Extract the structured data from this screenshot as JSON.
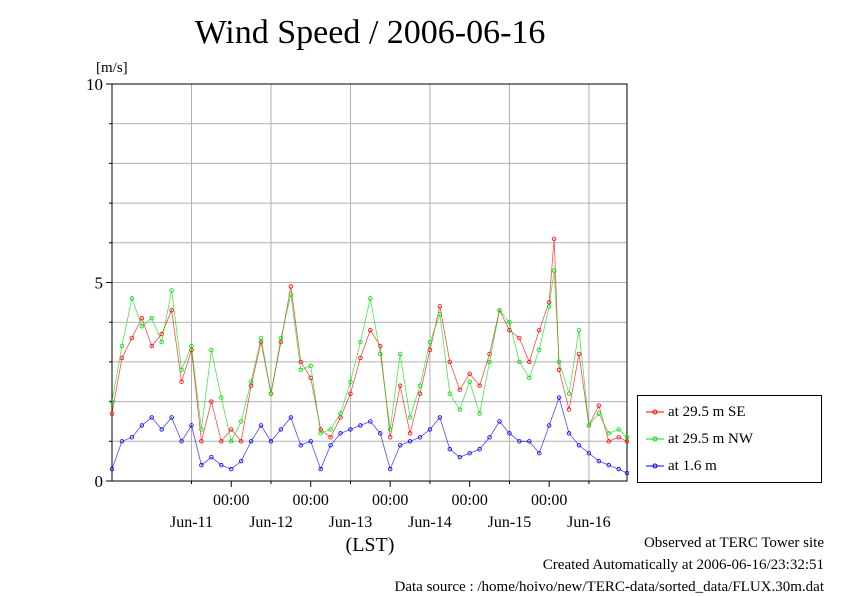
{
  "chart_data": {
    "type": "line",
    "title": "Wind Speed / 2006-06-16",
    "ylabel": "[m/s]",
    "xlabel": "(LST)",
    "ylim": [
      0,
      10
    ],
    "yticks": [
      "0",
      "5",
      "10"
    ],
    "xlim": [
      "2006-06-10 12:00",
      "2006-06-16 23:30"
    ],
    "time_labels": [
      "00:00",
      "00:00",
      "00:00",
      "00:00",
      "00:00"
    ],
    "day_labels": [
      "Jun-11",
      "Jun-12",
      "Jun-13",
      "Jun-14",
      "Jun-15",
      "Jun-16"
    ],
    "grid": true,
    "legend_position": "right",
    "series": [
      {
        "name": "at 29.5 m SE",
        "color": "#ff0000",
        "points": [
          [
            "2006-06-10 12:00",
            1.7
          ],
          [
            "2006-06-10 15:00",
            3.1
          ],
          [
            "2006-06-10 18:00",
            3.6
          ],
          [
            "2006-06-10 21:00",
            4.1
          ],
          [
            "2006-06-11 00:00",
            3.4
          ],
          [
            "2006-06-11 03:00",
            3.7
          ],
          [
            "2006-06-11 06:00",
            4.3
          ],
          [
            "2006-06-11 09:00",
            2.5
          ],
          [
            "2006-06-11 12:00",
            3.3
          ],
          [
            "2006-06-11 15:00",
            1.0
          ],
          [
            "2006-06-11 18:00",
            2.0
          ],
          [
            "2006-06-11 21:00",
            1.0
          ],
          [
            "2006-06-12 00:00",
            1.3
          ],
          [
            "2006-06-12 03:00",
            1.0
          ],
          [
            "2006-06-12 06:00",
            2.4
          ],
          [
            "2006-06-12 09:00",
            3.5
          ],
          [
            "2006-06-12 12:00",
            2.2
          ],
          [
            "2006-06-12 15:00",
            3.5
          ],
          [
            "2006-06-12 18:00",
            4.9
          ],
          [
            "2006-06-12 21:00",
            3.0
          ],
          [
            "2006-06-13 00:00",
            2.6
          ],
          [
            "2006-06-13 03:00",
            1.3
          ],
          [
            "2006-06-13 06:00",
            1.1
          ],
          [
            "2006-06-13 09:00",
            1.6
          ],
          [
            "2006-06-13 12:00",
            2.2
          ],
          [
            "2006-06-13 15:00",
            3.1
          ],
          [
            "2006-06-13 18:00",
            3.8
          ],
          [
            "2006-06-13 21:00",
            3.4
          ],
          [
            "2006-06-14 00:00",
            1.1
          ],
          [
            "2006-06-14 03:00",
            2.4
          ],
          [
            "2006-06-14 06:00",
            1.2
          ],
          [
            "2006-06-14 09:00",
            2.2
          ],
          [
            "2006-06-14 12:00",
            3.3
          ],
          [
            "2006-06-14 15:00",
            4.4
          ],
          [
            "2006-06-14 18:00",
            3.0
          ],
          [
            "2006-06-14 21:00",
            2.3
          ],
          [
            "2006-06-15 00:00",
            2.7
          ],
          [
            "2006-06-15 03:00",
            2.4
          ],
          [
            "2006-06-15 06:00",
            3.2
          ],
          [
            "2006-06-15 09:00",
            4.3
          ],
          [
            "2006-06-15 12:00",
            3.8
          ],
          [
            "2006-06-15 15:00",
            3.6
          ],
          [
            "2006-06-15 18:00",
            3.0
          ],
          [
            "2006-06-15 21:00",
            3.8
          ],
          [
            "2006-06-16 00:00",
            4.5
          ],
          [
            "2006-06-16 01:30",
            6.1
          ],
          [
            "2006-06-16 03:00",
            2.8
          ],
          [
            "2006-06-16 06:00",
            1.8
          ],
          [
            "2006-06-16 09:00",
            3.2
          ],
          [
            "2006-06-16 12:00",
            1.4
          ],
          [
            "2006-06-16 15:00",
            1.9
          ],
          [
            "2006-06-16 18:00",
            1.0
          ],
          [
            "2006-06-16 21:00",
            1.1
          ],
          [
            "2006-06-16 23:30",
            1.0
          ]
        ]
      },
      {
        "name": "at 29.5 m NW",
        "color": "#00dd00",
        "points": [
          [
            "2006-06-10 12:00",
            2.0
          ],
          [
            "2006-06-10 15:00",
            3.4
          ],
          [
            "2006-06-10 18:00",
            4.6
          ],
          [
            "2006-06-10 21:00",
            3.9
          ],
          [
            "2006-06-11 00:00",
            4.1
          ],
          [
            "2006-06-11 03:00",
            3.5
          ],
          [
            "2006-06-11 06:00",
            4.8
          ],
          [
            "2006-06-11 09:00",
            2.8
          ],
          [
            "2006-06-11 12:00",
            3.4
          ],
          [
            "2006-06-11 15:00",
            1.3
          ],
          [
            "2006-06-11 18:00",
            3.3
          ],
          [
            "2006-06-11 21:00",
            2.1
          ],
          [
            "2006-06-12 00:00",
            1.0
          ],
          [
            "2006-06-12 03:00",
            1.5
          ],
          [
            "2006-06-12 06:00",
            2.5
          ],
          [
            "2006-06-12 09:00",
            3.6
          ],
          [
            "2006-06-12 12:00",
            2.2
          ],
          [
            "2006-06-12 15:00",
            3.6
          ],
          [
            "2006-06-12 18:00",
            4.7
          ],
          [
            "2006-06-12 21:00",
            2.8
          ],
          [
            "2006-06-13 00:00",
            2.9
          ],
          [
            "2006-06-13 03:00",
            1.2
          ],
          [
            "2006-06-13 06:00",
            1.3
          ],
          [
            "2006-06-13 09:00",
            1.7
          ],
          [
            "2006-06-13 12:00",
            2.5
          ],
          [
            "2006-06-13 15:00",
            3.5
          ],
          [
            "2006-06-13 18:00",
            4.6
          ],
          [
            "2006-06-13 21:00",
            3.2
          ],
          [
            "2006-06-14 00:00",
            1.3
          ],
          [
            "2006-06-14 03:00",
            3.2
          ],
          [
            "2006-06-14 06:00",
            1.6
          ],
          [
            "2006-06-14 09:00",
            2.4
          ],
          [
            "2006-06-14 12:00",
            3.5
          ],
          [
            "2006-06-14 15:00",
            4.2
          ],
          [
            "2006-06-14 18:00",
            2.2
          ],
          [
            "2006-06-14 21:00",
            1.8
          ],
          [
            "2006-06-15 00:00",
            2.5
          ],
          [
            "2006-06-15 03:00",
            1.7
          ],
          [
            "2006-06-15 06:00",
            3.0
          ],
          [
            "2006-06-15 09:00",
            4.3
          ],
          [
            "2006-06-15 12:00",
            4.0
          ],
          [
            "2006-06-15 15:00",
            3.0
          ],
          [
            "2006-06-15 18:00",
            2.6
          ],
          [
            "2006-06-15 21:00",
            3.3
          ],
          [
            "2006-06-16 00:00",
            4.4
          ],
          [
            "2006-06-16 01:30",
            5.3
          ],
          [
            "2006-06-16 03:00",
            3.0
          ],
          [
            "2006-06-16 06:00",
            2.2
          ],
          [
            "2006-06-16 09:00",
            3.8
          ],
          [
            "2006-06-16 12:00",
            1.4
          ],
          [
            "2006-06-16 15:00",
            1.7
          ],
          [
            "2006-06-16 18:00",
            1.2
          ],
          [
            "2006-06-16 21:00",
            1.3
          ],
          [
            "2006-06-16 23:30",
            1.1
          ]
        ]
      },
      {
        "name": "at 1.6 m",
        "color": "#0000ff",
        "points": [
          [
            "2006-06-10 12:00",
            0.3
          ],
          [
            "2006-06-10 15:00",
            1.0
          ],
          [
            "2006-06-10 18:00",
            1.1
          ],
          [
            "2006-06-10 21:00",
            1.4
          ],
          [
            "2006-06-11 00:00",
            1.6
          ],
          [
            "2006-06-11 03:00",
            1.3
          ],
          [
            "2006-06-11 06:00",
            1.6
          ],
          [
            "2006-06-11 09:00",
            1.0
          ],
          [
            "2006-06-11 12:00",
            1.4
          ],
          [
            "2006-06-11 15:00",
            0.4
          ],
          [
            "2006-06-11 18:00",
            0.6
          ],
          [
            "2006-06-11 21:00",
            0.4
          ],
          [
            "2006-06-12 00:00",
            0.3
          ],
          [
            "2006-06-12 03:00",
            0.5
          ],
          [
            "2006-06-12 06:00",
            1.0
          ],
          [
            "2006-06-12 09:00",
            1.4
          ],
          [
            "2006-06-12 12:00",
            1.0
          ],
          [
            "2006-06-12 15:00",
            1.3
          ],
          [
            "2006-06-12 18:00",
            1.6
          ],
          [
            "2006-06-12 21:00",
            0.9
          ],
          [
            "2006-06-13 00:00",
            1.0
          ],
          [
            "2006-06-13 03:00",
            0.3
          ],
          [
            "2006-06-13 06:00",
            0.9
          ],
          [
            "2006-06-13 09:00",
            1.2
          ],
          [
            "2006-06-13 12:00",
            1.3
          ],
          [
            "2006-06-13 15:00",
            1.4
          ],
          [
            "2006-06-13 18:00",
            1.5
          ],
          [
            "2006-06-13 21:00",
            1.2
          ],
          [
            "2006-06-14 00:00",
            0.3
          ],
          [
            "2006-06-14 03:00",
            0.9
          ],
          [
            "2006-06-14 06:00",
            1.0
          ],
          [
            "2006-06-14 09:00",
            1.1
          ],
          [
            "2006-06-14 12:00",
            1.3
          ],
          [
            "2006-06-14 15:00",
            1.6
          ],
          [
            "2006-06-14 18:00",
            0.8
          ],
          [
            "2006-06-14 21:00",
            0.6
          ],
          [
            "2006-06-15 00:00",
            0.7
          ],
          [
            "2006-06-15 03:00",
            0.8
          ],
          [
            "2006-06-15 06:00",
            1.1
          ],
          [
            "2006-06-15 09:00",
            1.5
          ],
          [
            "2006-06-15 12:00",
            1.2
          ],
          [
            "2006-06-15 15:00",
            1.0
          ],
          [
            "2006-06-15 18:00",
            1.0
          ],
          [
            "2006-06-15 21:00",
            0.7
          ],
          [
            "2006-06-16 00:00",
            1.4
          ],
          [
            "2006-06-16 03:00",
            2.1
          ],
          [
            "2006-06-16 06:00",
            1.2
          ],
          [
            "2006-06-16 09:00",
            0.9
          ],
          [
            "2006-06-16 12:00",
            0.7
          ],
          [
            "2006-06-16 15:00",
            0.5
          ],
          [
            "2006-06-16 18:00",
            0.4
          ],
          [
            "2006-06-16 21:00",
            0.3
          ],
          [
            "2006-06-16 23:30",
            0.2
          ]
        ]
      }
    ]
  },
  "footer": {
    "observed": "Observed at TERC Tower site",
    "created": "Created Automatically at 2006-06-16/23:32:51",
    "source": "Data source : /home/hoivo/new/TERC-data/sorted_data/FLUX.30m.dat"
  }
}
